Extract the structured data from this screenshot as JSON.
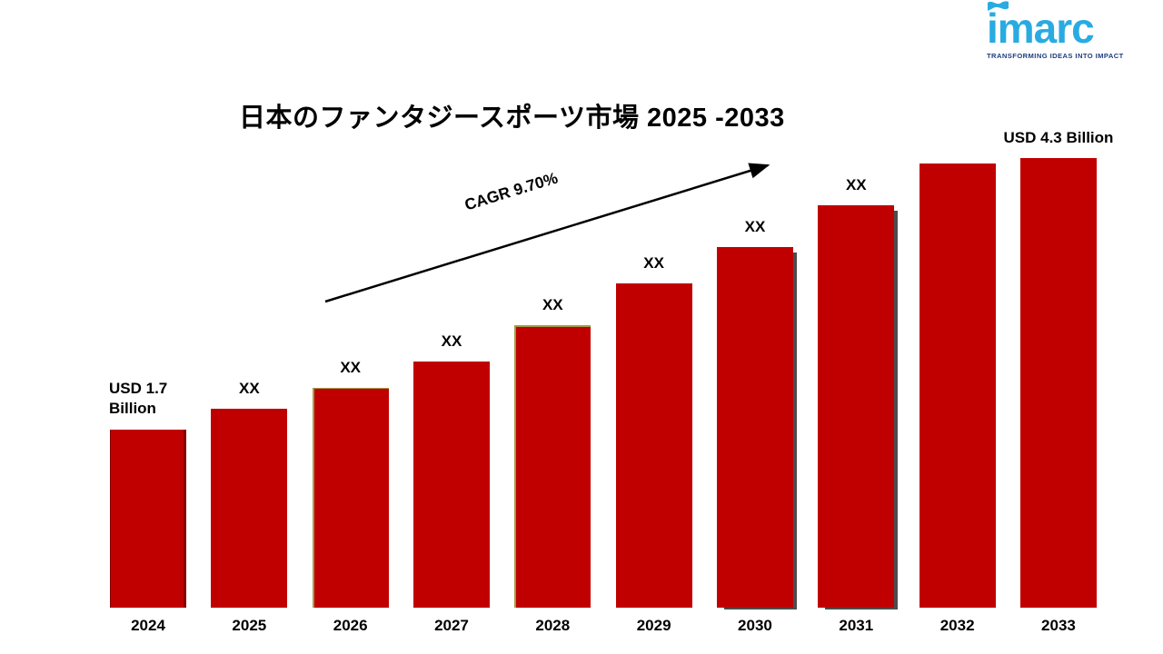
{
  "logo": {
    "brand": "imarc",
    "tagline": "TRANSFORMING IDEAS INTO IMPACT",
    "brand_color": "#29ABE2",
    "tagline_color": "#1D3E7D"
  },
  "chart": {
    "title": "日本のファンタジースポーツ市場 2025 -2033",
    "cagr_label": "CAGR 9.70%",
    "bar_color": "#C00000",
    "first_bar_label": "USD 1.7 Billion",
    "last_bar_label": "USD 4.3 Billion"
  },
  "chart_data": {
    "type": "bar",
    "title": "日本のファンタジースポーツ市場 2025 -2033",
    "categories": [
      "2024",
      "2025",
      "2026",
      "2027",
      "2028",
      "2029",
      "2030",
      "2031",
      "2032",
      "2033"
    ],
    "values": [
      1.7,
      1.9,
      2.1,
      2.35,
      2.7,
      3.1,
      3.45,
      3.85,
      4.25,
      4.3
    ],
    "value_labels": [
      "USD 1.7 Billion",
      "XX",
      "XX",
      "XX",
      "XX",
      "XX",
      "XX",
      "XX",
      "",
      "USD 4.3 Billion"
    ],
    "unit": "USD Billion",
    "cagr": "9.70%",
    "ylim": [
      0,
      4.5
    ],
    "grid": false,
    "legend": false,
    "value_axis_visible": false
  }
}
